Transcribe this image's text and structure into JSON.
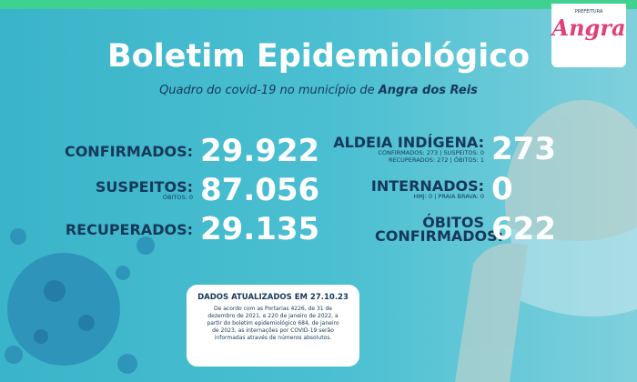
{
  "logo": {
    "small": "PREFEITURA",
    "name": "Angra"
  },
  "header": {
    "title": "Boletim Epidemiológico",
    "subtitle": {
      "text": "Quadro do covid-19 no município de ",
      "emphasis": "Angra dos Reis"
    }
  },
  "left_stats": [
    {
      "label": "CONFIRMADOS:",
      "value": "29.922"
    },
    {
      "label": "SUSPEITOS:",
      "detail": [
        "ÓBITOS: 0"
      ],
      "value": "87.056"
    },
    {
      "label": "RECUPERADOS:",
      "value": "29.135"
    }
  ],
  "right_stats": [
    {
      "label": "ALDEIA INDÍGENA:",
      "detail": [
        "CONFIRMADOS: 273 | SUSPEITOS: 0",
        "RECUPERADOS: 272 | ÓBITOS: 1"
      ],
      "value": "273"
    },
    {
      "label": "INTERNADOS:",
      "detail": [
        "HMJ: 0 | PRAIA BRAVA: 0"
      ],
      "value": "0"
    },
    {
      "label": "ÓBITOS CONFIRMADOS:",
      "value": "622"
    }
  ],
  "note": {
    "heading": "DADOS ATUALIZADOS EM 27.10.23",
    "lines": [
      "De acordo com as Portarias 4226, de 31 de",
      "dezembro de 2021, e 220 de janeiro de 2022, a",
      "partir do boletim epidemiológico 684, de janeiro",
      "de 2023, as internações por COVID-19 serão",
      "informadas através de números absolutos."
    ]
  }
}
